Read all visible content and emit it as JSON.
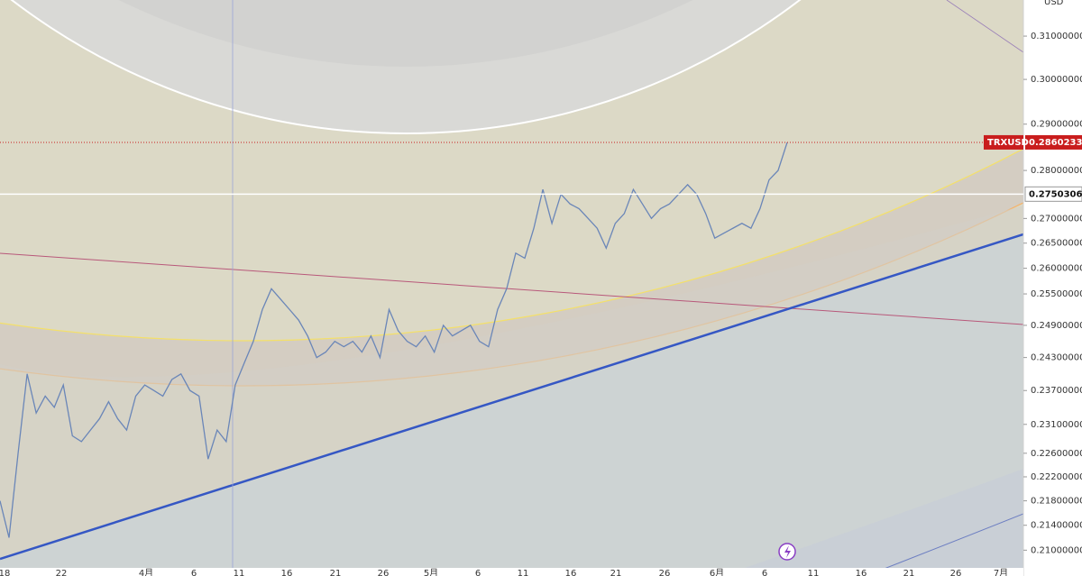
{
  "chart_data": {
    "type": "line",
    "unit": "USD",
    "log_scale": true,
    "ylim": [
      0.2072,
      0.3186
    ],
    "yticks": [
      {
        "value": 0.31,
        "label": "0.31000000"
      },
      {
        "value": 0.3,
        "label": "0.30000000"
      },
      {
        "value": 0.29,
        "label": "0.29000000"
      },
      {
        "value": 0.28,
        "label": "0.28000000"
      },
      {
        "value": 0.27,
        "label": "0.27000000"
      },
      {
        "value": 0.265,
        "label": "0.26500000"
      },
      {
        "value": 0.26,
        "label": "0.26000000"
      },
      {
        "value": 0.255,
        "label": "0.25500000"
      },
      {
        "value": 0.249,
        "label": "0.24900000"
      },
      {
        "value": 0.243,
        "label": "0.24300000"
      },
      {
        "value": 0.237,
        "label": "0.23700000"
      },
      {
        "value": 0.231,
        "label": "0.23100000"
      },
      {
        "value": 0.226,
        "label": "0.22600000"
      },
      {
        "value": 0.222,
        "label": "0.22200000"
      },
      {
        "value": 0.218,
        "label": "0.21800000"
      },
      {
        "value": 0.214,
        "label": "0.21400000"
      },
      {
        "value": 0.21,
        "label": "0.21000000"
      }
    ],
    "x_tick_labels": [
      "18",
      "22",
      "4月",
      "6",
      "11",
      "16",
      "21",
      "26",
      "5月",
      "6",
      "11",
      "16",
      "21",
      "26",
      "6月",
      "6",
      "11",
      "16",
      "21",
      "26",
      "7月"
    ],
    "series": [
      {
        "name": "TRXUSD",
        "color": "#6a86b8",
        "values": [
          0.218,
          0.212,
          0.226,
          0.24,
          0.233,
          0.236,
          0.234,
          0.238,
          0.229,
          0.228,
          0.23,
          0.232,
          0.235,
          0.232,
          0.23,
          0.236,
          0.238,
          0.237,
          0.236,
          0.239,
          0.24,
          0.237,
          0.236,
          0.225,
          0.23,
          0.228,
          0.238,
          0.242,
          0.246,
          0.252,
          0.256,
          0.254,
          0.252,
          0.25,
          0.247,
          0.243,
          0.244,
          0.246,
          0.245,
          0.246,
          0.244,
          0.247,
          0.243,
          0.252,
          0.248,
          0.246,
          0.245,
          0.247,
          0.244,
          0.249,
          0.247,
          0.248,
          0.249,
          0.246,
          0.245,
          0.252,
          0.256,
          0.263,
          0.262,
          0.268,
          0.276,
          0.269,
          0.275,
          0.273,
          0.272,
          0.27,
          0.268,
          0.264,
          0.269,
          0.271,
          0.276,
          0.273,
          0.27,
          0.272,
          0.273,
          0.275,
          0.277,
          0.275,
          0.271,
          0.266,
          0.267,
          0.268,
          0.269,
          0.268,
          0.272,
          0.278,
          0.28,
          0.286
        ]
      }
    ],
    "price_tags": [
      {
        "value": 0.28602334,
        "color": "#c91d1d"
      },
      {
        "value": 0.27503062,
        "color": "#ffffff"
      }
    ]
  }
}
